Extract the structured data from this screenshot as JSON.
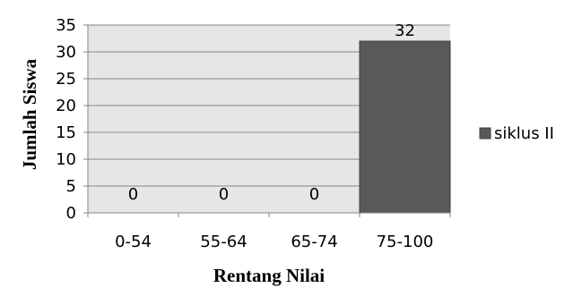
{
  "chart_data": {
    "type": "bar",
    "title": "",
    "xlabel": "Rentang Nilai",
    "ylabel": "Jumlah Siswa",
    "categories": [
      "0-54",
      "55-64",
      "65-74",
      "75-100"
    ],
    "series": [
      {
        "name": "siklus II",
        "values": [
          0,
          0,
          0,
          32
        ]
      }
    ],
    "data_labels": [
      "0",
      "0",
      "0",
      "32"
    ],
    "y_ticks": [
      "0",
      "5",
      "10",
      "15",
      "20",
      "25",
      "30",
      "35"
    ],
    "ylim": [
      0,
      35
    ],
    "grid": true,
    "legend_position": "right",
    "colors": {
      "bar": "#595959",
      "bar_border": "#3f3f3f",
      "plot_background": "#e6e6e6",
      "grid": "#868686",
      "axis": "#868686"
    }
  }
}
